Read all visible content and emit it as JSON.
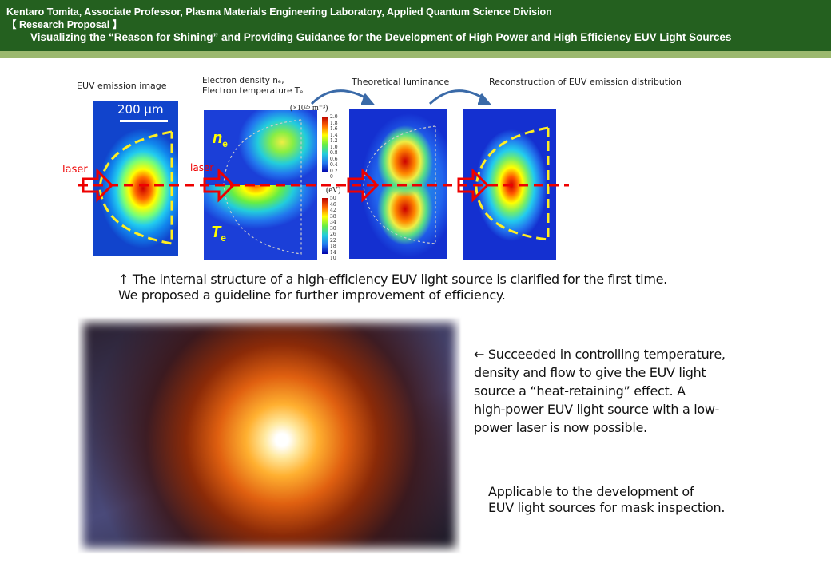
{
  "header": {
    "line1": "Kentaro Tomita, Associate Professor, Plasma Materials Engineering Laboratory, Applied Quantum Science Division",
    "line2": "【 Research Proposal 】",
    "line3": "Visualizing the “Reason for Shining” and Providing Guidance for the Development of High Power and High Efficiency EUV Light Sources"
  },
  "figure": {
    "label_emission": "EUV emission image",
    "label_density": "Electron density nₑ,",
    "label_temperature": "Electron temperature Tₑ",
    "label_luminance": "Theoretical luminance",
    "label_reconstruction": "Reconstruction of EUV emission distribution",
    "scale_bar": "200 μm",
    "laser1": "laser",
    "laser2": "laser",
    "ne": "n",
    "ne_sub": "e",
    "te": "T",
    "te_sub": "e",
    "density_unit": "(×10²⁵ m⁻³)",
    "density_ticks": [
      "2.0",
      "1.8",
      "1.6",
      "1.4",
      "1.2",
      "1.0",
      "0.8",
      "0.6",
      "0.4",
      "0.2",
      "0"
    ],
    "temp_unit": "(eV)",
    "temp_ticks": [
      "50",
      "46",
      "42",
      "38",
      "34",
      "30",
      "26",
      "22",
      "18",
      "14",
      "10"
    ]
  },
  "captions": {
    "c1_line1": "↑ The internal structure of a high-efficiency EUV light source is clarified for the first time.",
    "c1_line2": "We proposed a guideline for further improvement of efficiency.",
    "c2": [
      "← Succeeded in controlling temperature,",
      "density and flow to give the EUV light",
      "source a “heat-retaining” effect. A",
      "high-power EUV light source with a low-",
      "power laser is now possible."
    ],
    "c3": [
      "Applicable to the development of",
      "EUV light sources for mask inspection."
    ]
  },
  "colors": {
    "header": "#24601f",
    "band": "#9bb86e",
    "laser": "#e00000",
    "contour": "#ffee22"
  }
}
